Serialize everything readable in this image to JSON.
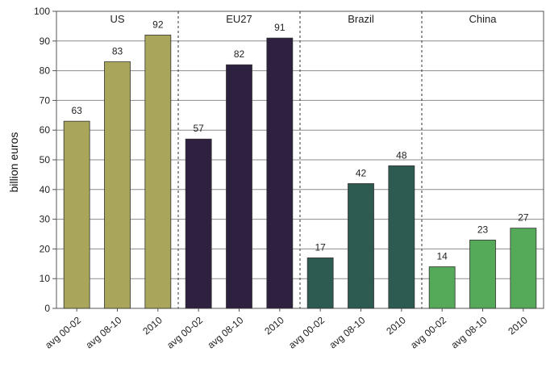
{
  "chart_data": {
    "type": "bar",
    "ylabel": "billion euros",
    "ylim": [
      0,
      100
    ],
    "yticks": [
      0,
      10,
      20,
      30,
      40,
      50,
      60,
      70,
      80,
      90,
      100
    ],
    "grid": true,
    "groups": [
      {
        "name": "US",
        "color": "#a9a55a",
        "categories": [
          "avg 00-02",
          "avg 08-10",
          "2010"
        ],
        "values": [
          63,
          83,
          92
        ]
      },
      {
        "name": "EU27",
        "color": "#2e2140",
        "categories": [
          "avg 00-02",
          "avg 08-10",
          "2010"
        ],
        "values": [
          57,
          82,
          91
        ]
      },
      {
        "name": "Brazil",
        "color": "#2d5a51",
        "categories": [
          "avg 00-02",
          "avg 08-10",
          "2010"
        ],
        "values": [
          17,
          42,
          48
        ]
      },
      {
        "name": "China",
        "color": "#55aa5a",
        "categories": [
          "avg 00-02",
          "avg 08-10",
          "2010"
        ],
        "values": [
          14,
          23,
          27
        ]
      }
    ]
  }
}
